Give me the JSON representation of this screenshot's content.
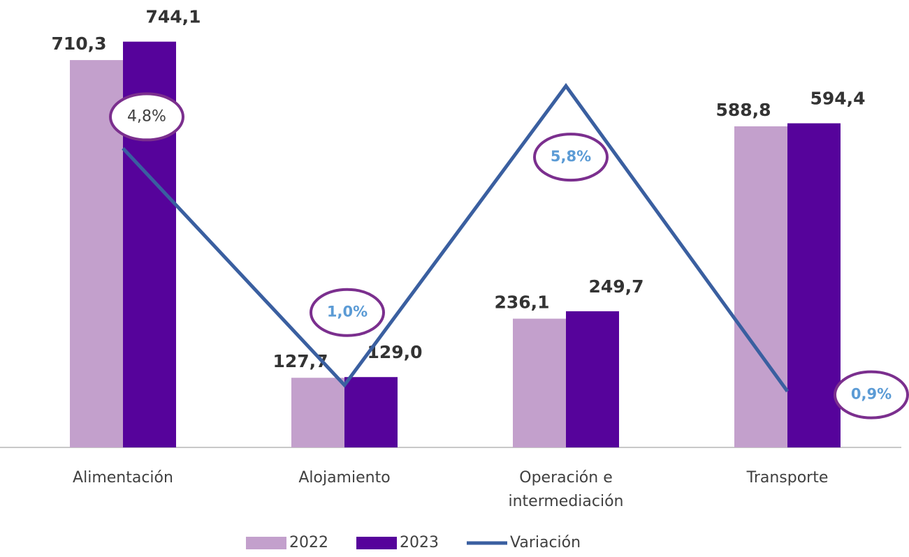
{
  "chart_data": {
    "type": "bar",
    "categories": [
      "Alimentación",
      "Alojamiento",
      "Operación e intermediación",
      "Transporte"
    ],
    "series": [
      {
        "name": "2022",
        "type": "bar",
        "color": "#c3a0cc",
        "values": [
          710.3,
          127.7,
          236.1,
          588.8
        ],
        "value_labels": [
          "710,3",
          "127,7",
          "236,1",
          "588,8"
        ]
      },
      {
        "name": "2023",
        "type": "bar",
        "color": "#56039b",
        "values": [
          744.1,
          129.0,
          249.7,
          594.4
        ],
        "value_labels": [
          "744,1",
          "129,0",
          "249,7",
          "594,4"
        ]
      },
      {
        "name": "Variación",
        "type": "line",
        "axis": "y2",
        "color": "#3a5fa0",
        "values": [
          4.8,
          1.0,
          5.8,
          0.9
        ],
        "value_labels": [
          "4,8%",
          "1,0%",
          "5,8%",
          "0,9%"
        ]
      }
    ],
    "ylim": [
      0,
      800
    ],
    "y2lim": [
      0,
      7
    ],
    "legend": "bottom"
  }
}
